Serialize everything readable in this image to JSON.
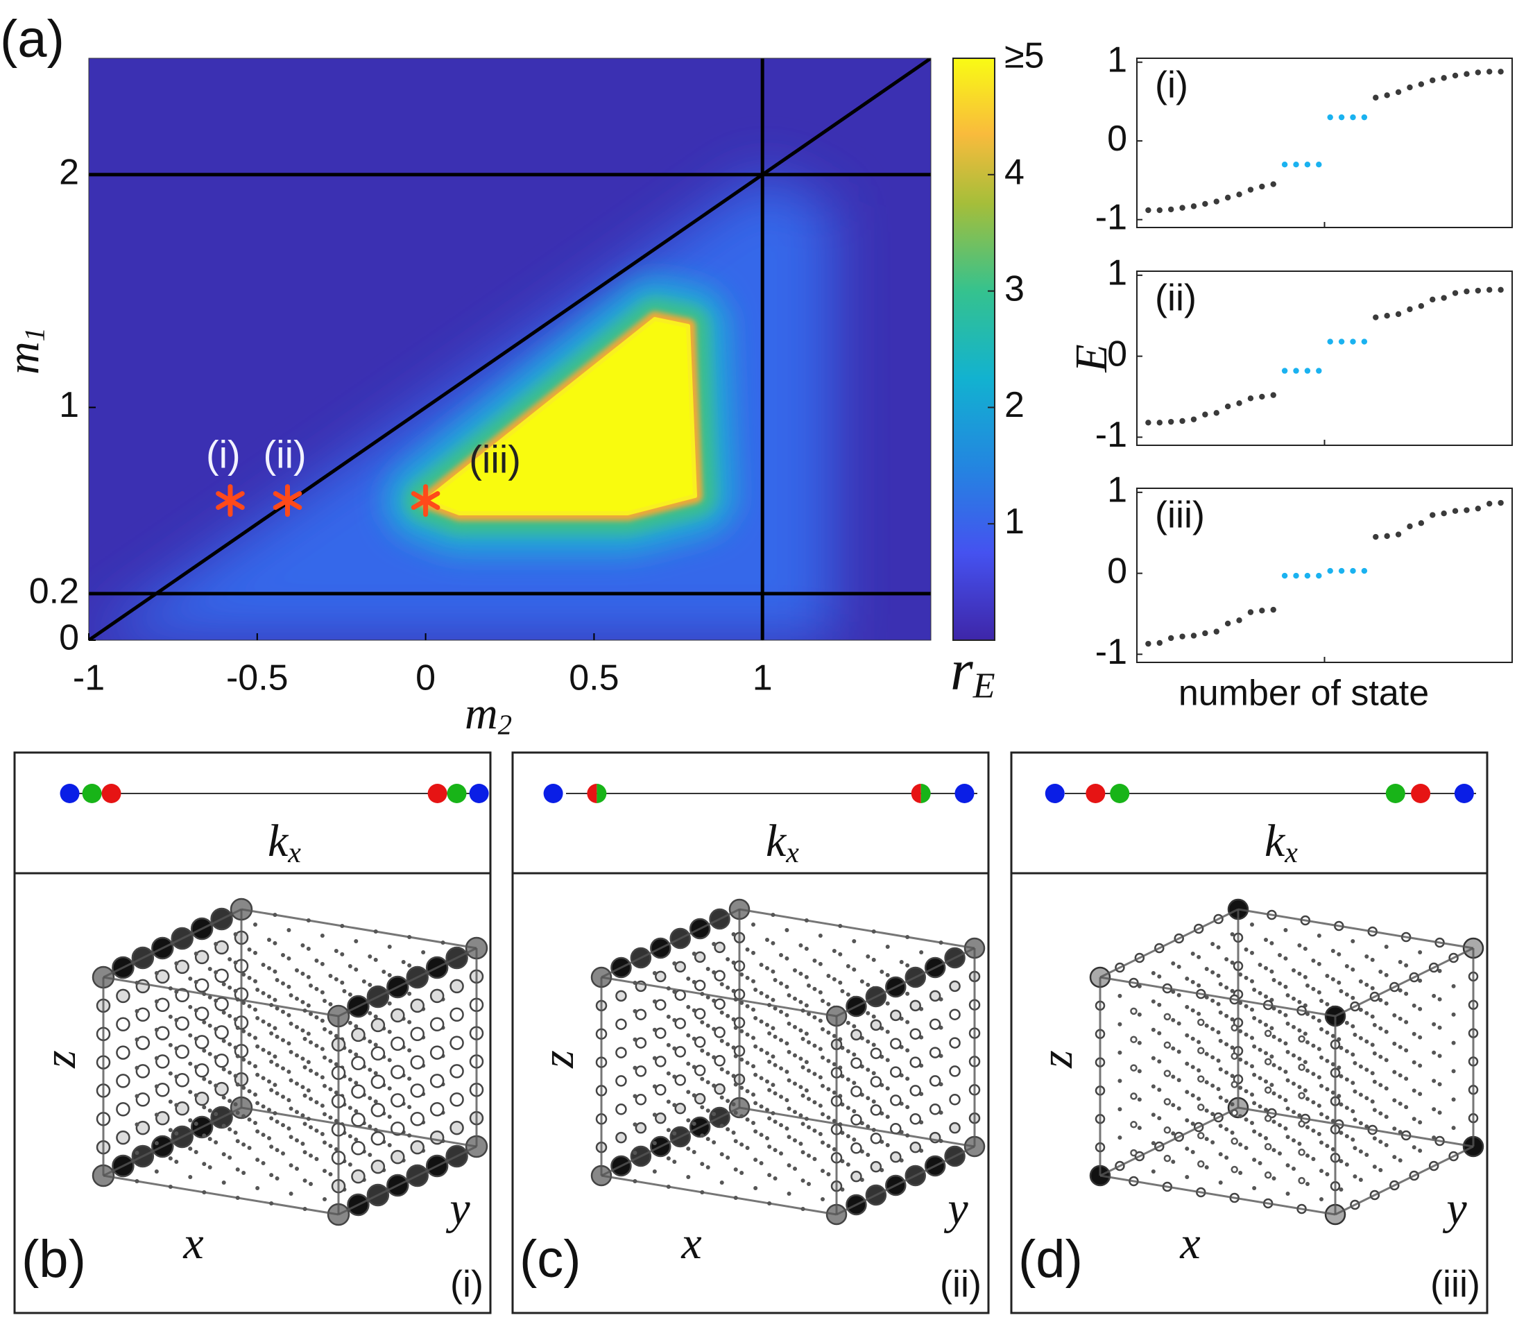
{
  "chart_data": [
    {
      "type": "heatmap",
      "title": "(a)",
      "xlabel": {
        "base": "m",
        "sub": "2"
      },
      "ylabel": {
        "base": "m",
        "sub": "1"
      },
      "xlim": [
        -1,
        1.5
      ],
      "ylim": [
        0,
        2.5
      ],
      "xticks": [
        -1,
        -0.5,
        0,
        0.5,
        1
      ],
      "yticks": [
        0,
        0.2,
        1,
        2
      ],
      "hlines": [
        0.2,
        2
      ],
      "vlines": [
        1
      ],
      "diagonal": {
        "x": [
          -1,
          1.5
        ],
        "y": [
          0,
          2.5
        ]
      },
      "markers": {
        "x": [
          -0.58,
          -0.41,
          0
        ],
        "y": [
          0.6,
          0.6,
          0.6
        ],
        "labels": [
          "(i)",
          "(ii)",
          "(iii)"
        ],
        "color": "#ff4a1a"
      },
      "colorbar": {
        "label": {
          "base": "r",
          "sub": "E"
        },
        "lim": [
          0,
          5
        ],
        "ticks": [
          1,
          2,
          3,
          4,
          {
            "value": 5,
            "label": "≥5"
          }
        ]
      }
    },
    {
      "type": "scatter",
      "label": "(i)",
      "xlim": [
        0,
        33
      ],
      "ylim": [
        -1.1,
        1.05
      ],
      "yticks": [
        -1,
        0,
        1
      ],
      "series": [
        {
          "color": "#3a3a3a",
          "x": [
            1,
            2,
            3,
            4,
            5,
            6,
            7,
            8,
            9,
            10,
            11,
            12,
            21,
            22,
            23,
            24,
            25,
            26,
            27,
            28,
            29,
            30,
            31,
            32
          ],
          "values": [
            -0.88,
            -0.88,
            -0.87,
            -0.85,
            -0.83,
            -0.8,
            -0.77,
            -0.72,
            -0.68,
            -0.62,
            -0.58,
            -0.55,
            0.55,
            0.58,
            0.62,
            0.68,
            0.72,
            0.77,
            0.8,
            0.83,
            0.85,
            0.87,
            0.88,
            0.88
          ]
        },
        {
          "color": "#1ab2f0",
          "x": [
            13,
            14,
            15,
            16,
            17,
            18,
            19,
            20
          ],
          "values": [
            -0.3,
            -0.3,
            -0.3,
            -0.3,
            0.3,
            0.3,
            0.3,
            0.3
          ]
        }
      ]
    },
    {
      "type": "scatter",
      "label": "(ii)",
      "ylabel": "E",
      "xlim": [
        0,
        33
      ],
      "ylim": [
        -1.1,
        1.05
      ],
      "yticks": [
        -1,
        0,
        1
      ],
      "series": [
        {
          "color": "#3a3a3a",
          "x": [
            1,
            2,
            3,
            4,
            5,
            6,
            7,
            8,
            9,
            10,
            11,
            12,
            21,
            22,
            23,
            24,
            25,
            26,
            27,
            28,
            29,
            30,
            31,
            32
          ],
          "values": [
            -0.82,
            -0.82,
            -0.81,
            -0.8,
            -0.78,
            -0.72,
            -0.7,
            -0.62,
            -0.58,
            -0.52,
            -0.5,
            -0.48,
            0.48,
            0.5,
            0.52,
            0.58,
            0.62,
            0.7,
            0.72,
            0.78,
            0.8,
            0.81,
            0.82,
            0.82
          ]
        },
        {
          "color": "#1ab2f0",
          "x": [
            13,
            14,
            15,
            16,
            17,
            18,
            19,
            20
          ],
          "values": [
            -0.18,
            -0.18,
            -0.18,
            -0.18,
            0.18,
            0.18,
            0.18,
            0.18
          ]
        }
      ]
    },
    {
      "type": "scatter",
      "label": "(iii)",
      "xlabel": "number of state",
      "xlim": [
        0,
        33
      ],
      "ylim": [
        -1.1,
        1.05
      ],
      "yticks": [
        -1,
        0,
        1
      ],
      "series": [
        {
          "color": "#3a3a3a",
          "x": [
            1,
            2,
            3,
            4,
            5,
            6,
            7,
            8,
            9,
            10,
            11,
            12,
            21,
            22,
            23,
            24,
            25,
            26,
            27,
            28,
            29,
            30,
            31,
            32
          ],
          "values": [
            -0.87,
            -0.86,
            -0.8,
            -0.78,
            -0.77,
            -0.74,
            -0.72,
            -0.62,
            -0.58,
            -0.48,
            -0.46,
            -0.45,
            0.45,
            0.46,
            0.48,
            0.58,
            0.62,
            0.72,
            0.74,
            0.77,
            0.78,
            0.8,
            0.86,
            0.87
          ]
        },
        {
          "color": "#1ab2f0",
          "x": [
            13,
            14,
            15,
            16,
            17,
            18,
            19,
            20
          ],
          "values": [
            -0.03,
            -0.03,
            -0.03,
            -0.03,
            0.03,
            0.03,
            0.03,
            0.03
          ]
        }
      ]
    }
  ],
  "panels": [
    {
      "label": "(b)",
      "case": "(i)",
      "kx": {
        "base": "k",
        "sub": "x"
      },
      "axes": {
        "x": "x",
        "y": "y",
        "z": "z"
      },
      "mode": "edges"
    },
    {
      "label": "(c)",
      "case": "(ii)",
      "kx": {
        "base": "k",
        "sub": "x"
      },
      "axes": {
        "x": "x",
        "y": "y",
        "z": "z"
      },
      "mode": "edges"
    },
    {
      "label": "(d)",
      "case": "(iii)",
      "kx": {
        "base": "k",
        "sub": "x"
      },
      "axes": {
        "x": "x",
        "y": "y",
        "z": "z"
      },
      "mode": "corners"
    }
  ]
}
